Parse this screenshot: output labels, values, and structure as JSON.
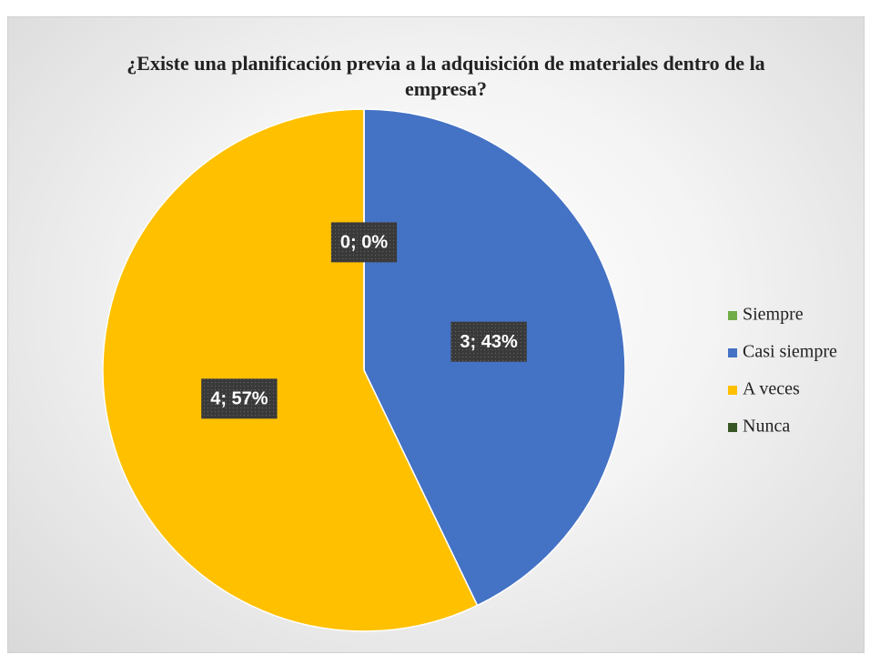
{
  "chart_data": {
    "type": "pie",
    "title": "¿Existe una planificación previa a la adquisición de materiales dentro de la empresa?",
    "categories": [
      "Siempre",
      "Casi siempre",
      "A veces",
      "Nunca"
    ],
    "values": [
      0,
      3,
      4,
      0
    ],
    "value_labels": [
      "0; 0%",
      "3; 43%",
      "4; 57%",
      null
    ],
    "colors": [
      "#70ad47",
      "#4472c4",
      "#ffc000",
      "#375623"
    ],
    "legend": "right"
  }
}
